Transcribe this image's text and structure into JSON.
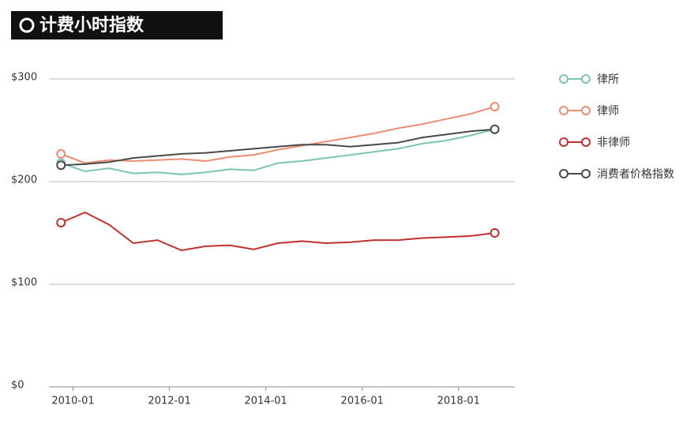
{
  "chart_data": {
    "type": "line",
    "title": "计费小时指数",
    "x": [
      "2009-10",
      "2010-04",
      "2010-10",
      "2011-04",
      "2011-10",
      "2012-04",
      "2012-10",
      "2013-04",
      "2013-10",
      "2014-04",
      "2014-10",
      "2015-04",
      "2015-10",
      "2016-04",
      "2016-10",
      "2017-04",
      "2017-10",
      "2018-04",
      "2018-10"
    ],
    "series": [
      {
        "name": "律所",
        "color": "#7dc4b0",
        "values": [
          218,
          210,
          213,
          208,
          209,
          207,
          209,
          212,
          211,
          218,
          220,
          223,
          226,
          229,
          232,
          237,
          240,
          245,
          251
        ]
      },
      {
        "name": "律师",
        "color": "#ec8c72",
        "values": [
          227,
          218,
          221,
          220,
          221,
          222,
          220,
          224,
          226,
          231,
          235,
          239,
          243,
          247,
          252,
          256,
          261,
          266,
          273
        ]
      },
      {
        "name": "非律师",
        "color": "#c0312f",
        "values": [
          160,
          170,
          158,
          140,
          143,
          133,
          137,
          138,
          134,
          140,
          142,
          140,
          141,
          143,
          143,
          145,
          146,
          147,
          150
        ]
      },
      {
        "name": "消费者价格指数",
        "color": "#4a4a4a",
        "values": [
          216,
          217,
          219,
          223,
          225,
          227,
          228,
          230,
          232,
          234,
          236,
          236,
          234,
          236,
          238,
          243,
          246,
          249,
          251
        ]
      }
    ],
    "xlim": [
      "2009-07",
      "2019-03"
    ],
    "xticks": [
      "2010-01",
      "2012-01",
      "2014-01",
      "2016-01",
      "2018-01"
    ],
    "ylim": [
      0,
      300
    ],
    "yticks": [
      {
        "value": 0,
        "label": "$0"
      },
      {
        "value": 100,
        "label": "$100"
      },
      {
        "value": 200,
        "label": "$200"
      },
      {
        "value": 300,
        "label": "$300"
      }
    ],
    "grid": true,
    "legend": "right"
  }
}
